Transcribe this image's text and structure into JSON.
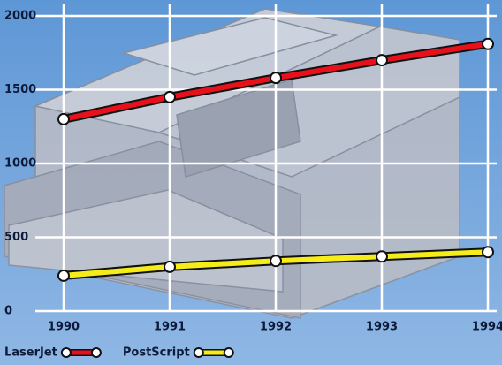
{
  "chart_data": {
    "type": "line",
    "categories": [
      "1990",
      "1991",
      "1992",
      "1993",
      "1994"
    ],
    "series": [
      {
        "name": "LaserJet",
        "color": "#e8101a",
        "values": [
          1300,
          1450,
          1580,
          1700,
          1810
        ]
      },
      {
        "name": "PostScript",
        "color": "#f5ec1a",
        "values": [
          240,
          300,
          340,
          370,
          400
        ]
      }
    ],
    "ylim": [
      0,
      2000
    ],
    "yticks": [
      0,
      500,
      1000,
      1500,
      2000
    ],
    "grid": true
  }
}
